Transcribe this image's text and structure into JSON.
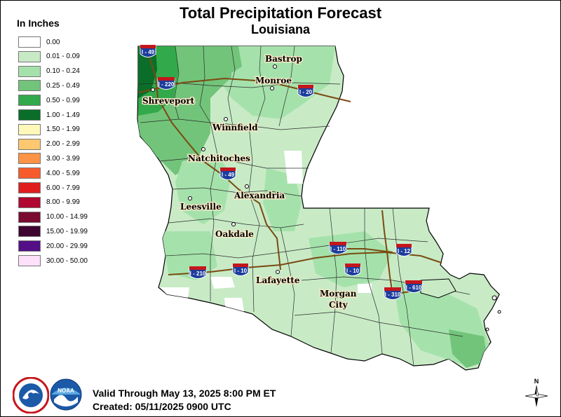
{
  "title": "Total Precipitation Forecast",
  "subtitle": "Louisiana",
  "legend": {
    "title": "In Inches",
    "items": [
      {
        "label": "0.00",
        "color": "#ffffff"
      },
      {
        "label": "0.01 - 0.09",
        "color": "#c8ebc6"
      },
      {
        "label": "0.10 - 0.24",
        "color": "#a5e2ab"
      },
      {
        "label": "0.25 - 0.49",
        "color": "#72c47a"
      },
      {
        "label": "0.50 - 0.99",
        "color": "#32a94a"
      },
      {
        "label": "1.00 - 1.49",
        "color": "#0a6e2a"
      },
      {
        "label": "1.50 - 1.99",
        "color": "#fff9b9"
      },
      {
        "label": "2.00 - 2.99",
        "color": "#fdc870"
      },
      {
        "label": "3.00 - 3.99",
        "color": "#fd9346"
      },
      {
        "label": "4.00 - 5.99",
        "color": "#f75b2c"
      },
      {
        "label": "6.00 - 7.99",
        "color": "#df1d1f"
      },
      {
        "label": "8.00 - 9.99",
        "color": "#b00830"
      },
      {
        "label": "10.00 - 14.99",
        "color": "#7a0a2f"
      },
      {
        "label": "15.00 - 19.99",
        "color": "#3e0530"
      },
      {
        "label": "20.00 - 29.99",
        "color": "#540f86"
      },
      {
        "label": "30.00 - 50.00",
        "color": "#fde0fa"
      }
    ]
  },
  "cities": [
    {
      "name": "Bastrop"
    },
    {
      "name": "Monroe"
    },
    {
      "name": "Shreveport"
    },
    {
      "name": "Winnfield"
    },
    {
      "name": "Natchitoches"
    },
    {
      "name": "Alexandria"
    },
    {
      "name": "Leesville"
    },
    {
      "name": "Oakdale"
    },
    {
      "name": "Lafayette"
    },
    {
      "name": "Morgan"
    },
    {
      "name": "City"
    }
  ],
  "interstates": [
    {
      "label": "I - 49"
    },
    {
      "label": "I - 220"
    },
    {
      "label": "I - 20"
    },
    {
      "label": "I - 49"
    },
    {
      "label": "I - 110"
    },
    {
      "label": "I - 12"
    },
    {
      "label": "I - 210"
    },
    {
      "label": "I - 10"
    },
    {
      "label": "I - 10"
    },
    {
      "label": "I - 310"
    },
    {
      "label": "I - 610"
    }
  ],
  "valid_text": "Valid Through May 13, 2025 8:00 PM ET",
  "created_text": "Created: 05/11/2025 0900 UTC",
  "logos": {
    "nws_text": "NATIONAL WEATHER SERVICE",
    "noaa_text": "NOAA"
  },
  "compass_label": "N"
}
